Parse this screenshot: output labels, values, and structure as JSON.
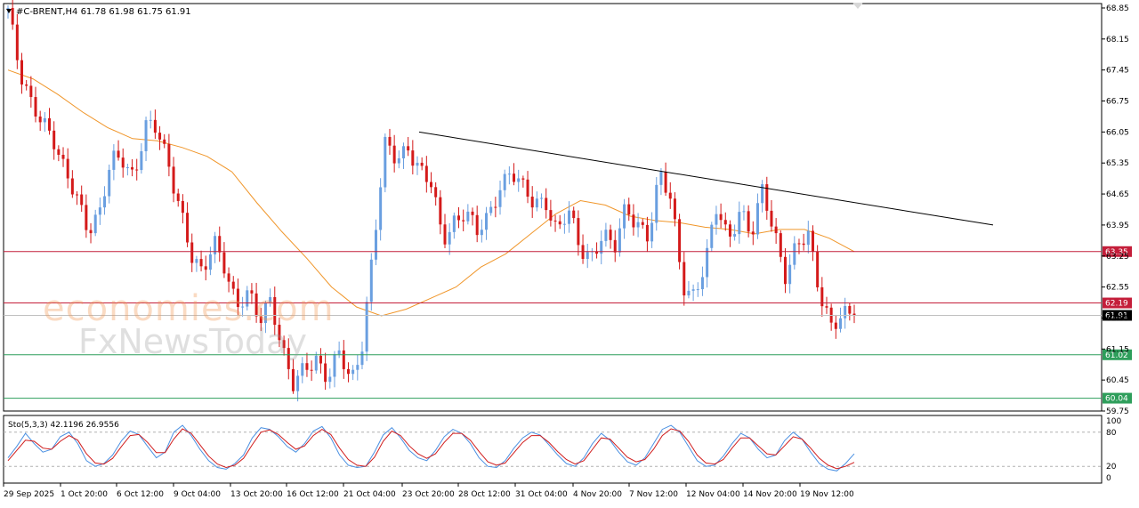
{
  "header": {
    "symbol_line": "#C-BRENT,H4  61.78 61.98 61.75 61.91"
  },
  "oscillator": {
    "label": "Sto(5,3,3) 42.1196 26.9556",
    "levels": [
      "100",
      "80",
      "20",
      "0"
    ],
    "main_color": "#4a90e2",
    "signal_color": "#d01c1c"
  },
  "watermark": {
    "line1": "economies.com",
    "line2": "FxNewsToday"
  },
  "colors": {
    "bull": "#6a9fe0",
    "bear": "#d41a1a",
    "ma": "#f0962a",
    "resistance": "#c41e3a",
    "support": "#2e9e5b",
    "trendline": "#000000",
    "current": "#000000"
  },
  "chart_data": {
    "type": "candlestick",
    "symbol": "#C-BRENT",
    "timeframe": "H4",
    "ylim": [
      59.75,
      68.95
    ],
    "y_ticks": [
      "68.85",
      "68.15",
      "67.45",
      "66.75",
      "66.05",
      "65.35",
      "64.65",
      "63.95",
      "63.25",
      "62.55",
      "61.85",
      "61.15",
      "60.45",
      "59.75"
    ],
    "x_ticks": [
      "29 Sep 2025",
      "1 Oct 20:00",
      "6 Oct 12:00",
      "9 Oct 04:00",
      "13 Oct 20:00",
      "16 Oct 12:00",
      "21 Oct 04:00",
      "23 Oct 20:00",
      "28 Oct 12:00",
      "31 Oct 04:00",
      "4 Nov 20:00",
      "7 Nov 12:00",
      "12 Nov 04:00",
      "14 Nov 20:00",
      "19 Nov 12:00"
    ],
    "close_path": [
      68.85,
      67.3,
      66.7,
      66.45,
      65.85,
      65.0,
      64.6,
      63.95,
      64.2,
      65.3,
      65.45,
      65.1,
      66.2,
      66.05,
      65.3,
      64.5,
      63.3,
      62.7,
      63.6,
      63.1,
      62.1,
      62.3,
      61.8,
      62.4,
      61.1,
      60.2,
      60.75,
      61.0,
      60.5,
      61.0,
      60.35,
      61.4,
      63.6,
      65.7,
      65.4,
      65.8,
      65.2,
      64.8,
      63.6,
      64.1,
      64.3,
      63.7,
      64.1,
      64.9,
      65.2,
      64.7,
      64.4,
      64.6,
      63.8,
      64.2,
      63.4,
      63.3,
      63.8,
      63.3,
      64.3,
      64.1,
      63.7,
      65.0,
      64.5,
      62.7,
      62.35,
      63.0,
      64.4,
      63.7,
      64.3,
      63.6,
      64.75,
      63.9,
      62.8,
      63.4,
      63.7,
      62.5,
      61.7,
      61.8,
      61.91
    ],
    "series": [
      {
        "name": "MA",
        "values": [
          67.45,
          67.25,
          66.9,
          66.5,
          66.15,
          65.9,
          65.85,
          65.7,
          65.5,
          65.15,
          64.45,
          63.8,
          63.2,
          62.55,
          62.1,
          61.9,
          62.05,
          62.3,
          62.55,
          63.0,
          63.3,
          63.75,
          64.2,
          64.5,
          64.4,
          64.15,
          64.05,
          64.0,
          63.9,
          63.85,
          63.75,
          63.85,
          63.85,
          63.65,
          63.35
        ]
      }
    ],
    "trendline": {
      "from": [
        "23 Oct 20:00",
        66.05
      ],
      "to_value": 63.95
    },
    "levels": [
      {
        "value": 63.35,
        "label": "63.35",
        "kind": "resistance"
      },
      {
        "value": 62.19,
        "label": "62.19",
        "kind": "resistance"
      },
      {
        "value": 61.02,
        "label": "61.02",
        "kind": "support"
      },
      {
        "value": 60.04,
        "label": "60.04",
        "kind": "support"
      }
    ],
    "current": {
      "value": 61.91,
      "label": "61.91"
    },
    "stochastic": {
      "main": [
        35,
        55,
        78,
        60,
        45,
        50,
        72,
        80,
        60,
        30,
        20,
        25,
        40,
        65,
        82,
        76,
        55,
        35,
        45,
        80,
        92,
        74,
        50,
        30,
        18,
        15,
        25,
        40,
        70,
        88,
        85,
        72,
        55,
        45,
        60,
        82,
        90,
        70,
        40,
        22,
        18,
        20,
        45,
        75,
        88,
        70,
        48,
        35,
        30,
        48,
        72,
        85,
        78,
        60,
        35,
        20,
        18,
        30,
        52,
        70,
        80,
        75,
        58,
        40,
        25,
        20,
        35,
        60,
        78,
        66,
        45,
        28,
        22,
        35,
        60,
        85,
        92,
        80,
        55,
        30,
        20,
        22,
        38,
        60,
        78,
        70,
        50,
        35,
        40,
        65,
        80,
        68,
        45,
        25,
        15,
        12,
        25,
        42
      ],
      "signal": [
        30,
        48,
        66,
        64,
        52,
        50,
        64,
        74,
        66,
        42,
        26,
        24,
        34,
        55,
        74,
        76,
        62,
        44,
        44,
        68,
        86,
        78,
        58,
        38,
        24,
        18,
        22,
        34,
        58,
        80,
        84,
        76,
        62,
        50,
        56,
        74,
        85,
        76,
        52,
        32,
        22,
        20,
        36,
        64,
        82,
        74,
        56,
        42,
        34,
        42,
        62,
        78,
        78,
        66,
        46,
        28,
        22,
        26,
        44,
        62,
        74,
        74,
        62,
        46,
        32,
        24,
        30,
        50,
        70,
        68,
        52,
        36,
        28,
        32,
        50,
        74,
        86,
        82,
        64,
        40,
        26,
        24,
        32,
        52,
        70,
        70,
        56,
        42,
        40,
        56,
        72,
        68,
        52,
        34,
        22,
        16,
        20,
        27
      ]
    }
  }
}
